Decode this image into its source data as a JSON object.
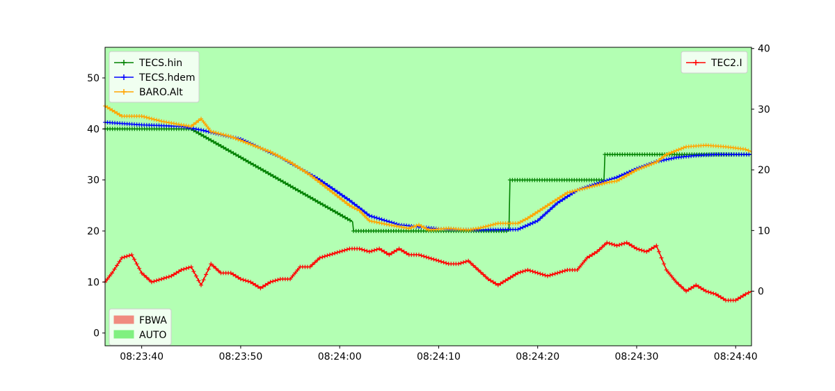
{
  "chart_data": {
    "type": "line",
    "title": "",
    "xlabel": "",
    "ylabel_left": "",
    "ylabel_right": "",
    "x_tick_labels": [
      "08:23:40",
      "08:23:50",
      "08:24:00",
      "08:24:10",
      "08:24:20",
      "08:24:30",
      "08:24:40"
    ],
    "x_tick_seconds": [
      40,
      50,
      60,
      70,
      80,
      90,
      100
    ],
    "xlim_seconds": [
      36.3,
      101.6
    ],
    "left_axis": {
      "ylim": [
        -2.5,
        56
      ],
      "ticks": [
        0,
        10,
        20,
        30,
        40,
        50
      ]
    },
    "right_axis": {
      "ylim": [
        -9,
        40.2
      ],
      "ticks": [
        0,
        10,
        20,
        30,
        40
      ]
    },
    "background_mode": {
      "name": "AUTO",
      "color": "#b3ffb3"
    },
    "mode_legend": [
      {
        "name": "FBWA",
        "color": "#f08b80"
      },
      {
        "name": "AUTO",
        "color": "#80f080"
      }
    ],
    "legend_left_position": "upper-left",
    "legend_right_position": "upper-right",
    "legend_modes_position": "lower-left",
    "series": [
      {
        "name": "TECS.hin",
        "axis": "left",
        "color": "#008000",
        "x": [
          36.3,
          45.0,
          61.3,
          61.4,
          71.0,
          77.1,
          77.2,
          86.7,
          86.8,
          101.6
        ],
        "y": [
          40,
          40,
          21.8,
          20,
          20,
          20,
          30,
          30,
          35,
          35
        ]
      },
      {
        "name": "TECS.hdem",
        "axis": "left",
        "color": "#0000ff",
        "x": [
          36.3,
          40,
          44,
          46,
          50,
          54,
          58,
          61,
          63,
          66,
          70,
          74,
          78,
          80,
          82,
          84,
          86,
          88,
          90,
          92,
          94,
          96,
          98,
          101.6
        ],
        "y": [
          41.3,
          40.8,
          40.5,
          39.8,
          38,
          34.5,
          30,
          26,
          23,
          21.2,
          20.4,
          20.2,
          20.3,
          22,
          25.5,
          28,
          29.3,
          30.5,
          32.2,
          33.6,
          34.4,
          34.8,
          35,
          35
        ]
      },
      {
        "name": "BARO.Alt",
        "axis": "left",
        "color": "#ffa500",
        "x": [
          36.3,
          38,
          40,
          42,
          44,
          45,
          46,
          47,
          49,
          51,
          53,
          55,
          57,
          59,
          61,
          62,
          63,
          65,
          67,
          68,
          69,
          71,
          73,
          74,
          76,
          78,
          79,
          81,
          83,
          85,
          87,
          88,
          90,
          92,
          93,
          95,
          97,
          99,
          101,
          101.6
        ],
        "y": [
          44.5,
          42.5,
          42.5,
          41.5,
          40.8,
          40.5,
          42,
          39.5,
          38.5,
          37,
          35.5,
          33.5,
          31,
          28,
          25,
          24,
          22,
          21.2,
          20.5,
          21.2,
          20.2,
          20.5,
          20.2,
          20.5,
          21.5,
          21.5,
          22.5,
          25,
          27.5,
          28.5,
          29.5,
          29.8,
          32,
          33.5,
          35,
          36.5,
          36.8,
          36.5,
          36,
          35.5
        ]
      },
      {
        "name": "TEC2.I",
        "axis": "right",
        "color": "#ff0000",
        "x": [
          36.3,
          37,
          38,
          39,
          40,
          41,
          42,
          43,
          44,
          45,
          46,
          47,
          48,
          49,
          50,
          51,
          52,
          53,
          54,
          55,
          56,
          57,
          58,
          59,
          60,
          61,
          62,
          63,
          64,
          65,
          66,
          67,
          68,
          69,
          70,
          71,
          72,
          73,
          74,
          75,
          76,
          77,
          78,
          79,
          80,
          81,
          82,
          83,
          84,
          85,
          86,
          87,
          88,
          89,
          90,
          91,
          92,
          93,
          94,
          95,
          96,
          97,
          98,
          99,
          100,
          101,
          101.6
        ],
        "y": [
          1.5,
          3,
          5.5,
          6,
          3,
          1.5,
          2,
          2.5,
          3.5,
          4,
          1,
          4.5,
          3,
          3,
          2,
          1.5,
          0.5,
          1.5,
          2,
          2,
          4,
          4,
          5.5,
          6,
          6.5,
          7,
          7,
          6.5,
          7,
          6,
          7,
          6,
          6,
          5.5,
          5,
          4.5,
          4.5,
          5,
          3.5,
          2,
          1,
          2,
          3,
          3.5,
          3,
          2.5,
          3,
          3.5,
          3.5,
          5.5,
          6.5,
          8,
          7.5,
          8,
          7,
          6.5,
          7.5,
          3.5,
          1.5,
          0,
          1,
          0,
          -0.5,
          -1.5,
          -1.5,
          -0.5,
          0
        ]
      }
    ]
  }
}
